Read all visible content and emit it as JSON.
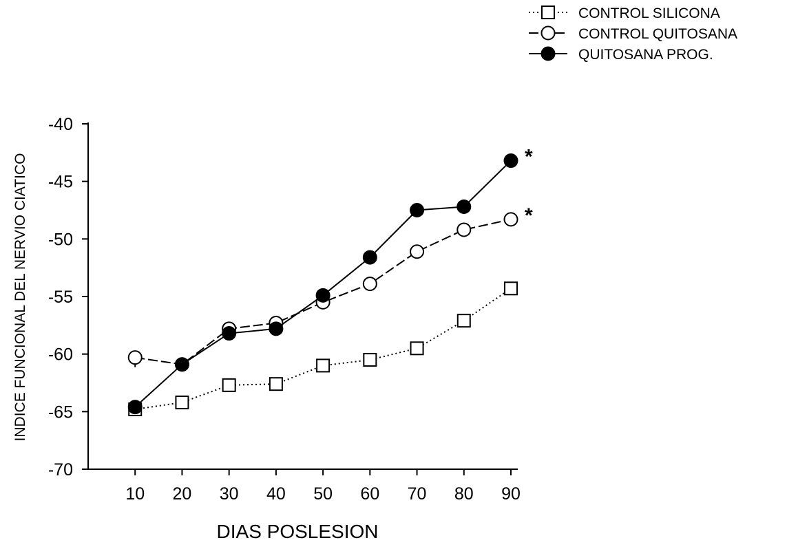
{
  "chart_data": {
    "type": "line",
    "title": "",
    "xlabel": "DIAS POSLESION",
    "ylabel": "INDICE FUNCIONAL DEL NERVIO CIATICO",
    "x": [
      10,
      20,
      30,
      40,
      50,
      60,
      70,
      80,
      90
    ],
    "xlim": [
      0,
      90
    ],
    "ylim": [
      -70,
      -40
    ],
    "yticks": [
      -40,
      -45,
      -50,
      -55,
      -60,
      -65,
      -70
    ],
    "xticks": [
      10,
      20,
      30,
      40,
      50,
      60,
      70,
      80,
      90
    ],
    "legend_position": "top-right",
    "grid": false,
    "series": [
      {
        "name": "CONTROL SILICONA",
        "marker": "open-square",
        "line_style": "dotted",
        "values": [
          -64.8,
          -64.2,
          -62.7,
          -62.6,
          -61.0,
          -60.5,
          -59.5,
          -57.1,
          -54.3
        ],
        "annotation": ""
      },
      {
        "name": "CONTROL QUITOSANA",
        "marker": "open-circle",
        "line_style": "dashed",
        "values": [
          -60.3,
          -60.9,
          -57.8,
          -57.3,
          -55.5,
          -53.9,
          -51.1,
          -49.2,
          -48.3
        ],
        "annotation": "*"
      },
      {
        "name": "QUITOSANA PROG.",
        "marker": "filled-circle",
        "line_style": "solid",
        "values": [
          -64.6,
          -60.9,
          -58.2,
          -57.8,
          -54.9,
          -51.6,
          -47.5,
          -47.2,
          -43.2
        ],
        "annotation": "*"
      }
    ]
  }
}
